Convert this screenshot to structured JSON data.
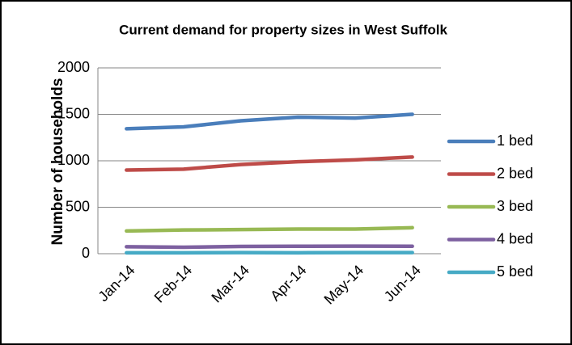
{
  "chart_data": {
    "type": "line",
    "title": "Current demand for property sizes in West Suffolk",
    "y_label": "Number of households",
    "categories": [
      "Jan-14",
      "Feb-14",
      "Mar-14",
      "Apr-14",
      "May-14",
      "Jun-14"
    ],
    "series": [
      {
        "name": "1 bed",
        "color": "#4a7ebb",
        "values": [
          1345,
          1365,
          1430,
          1470,
          1460,
          1500
        ]
      },
      {
        "name": "2 bed",
        "color": "#be4b48",
        "values": [
          900,
          910,
          960,
          990,
          1010,
          1040
        ]
      },
      {
        "name": "3 bed",
        "color": "#98b954",
        "values": [
          245,
          255,
          260,
          265,
          265,
          280
        ]
      },
      {
        "name": "4 bed",
        "color": "#7d60a0",
        "values": [
          75,
          70,
          78,
          80,
          82,
          80
        ]
      },
      {
        "name": "5 bed",
        "color": "#46aac5",
        "values": [
          10,
          10,
          12,
          10,
          12,
          12
        ]
      }
    ],
    "ylim": [
      0,
      2000
    ],
    "yticks": [
      0,
      500,
      1000,
      1500,
      2000
    ],
    "grid": true,
    "legend": "right"
  }
}
